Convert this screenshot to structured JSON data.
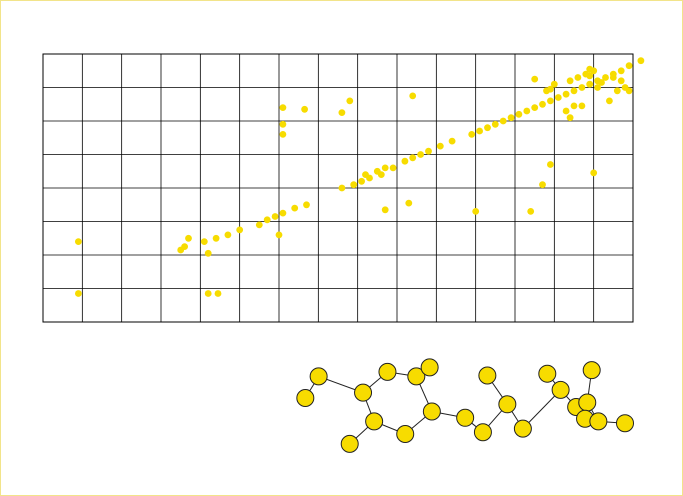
{
  "colors": {
    "frame_border": "#f2e48a",
    "grid": "#000000",
    "point_fill": "#f7dc00",
    "node_fill": "#f7dc00",
    "node_stroke": "#222222",
    "edge": "#222222"
  },
  "chart_data": {
    "type": "scatter",
    "title": "",
    "xlabel": "",
    "ylabel": "",
    "xlim": [
      0,
      15
    ],
    "ylim": [
      0,
      8
    ],
    "grid": true,
    "x_divisions": 15,
    "y_divisions": 8,
    "axis_tick_labels_shown": false,
    "legend": "none",
    "series": [
      {
        "marker": "circle",
        "points": [
          [
            0.9,
            2.4
          ],
          [
            0.9,
            0.85
          ],
          [
            3.5,
            2.15
          ],
          [
            3.6,
            2.25
          ],
          [
            3.7,
            2.5
          ],
          [
            4.1,
            2.4
          ],
          [
            4.2,
            2.05
          ],
          [
            4.4,
            2.5
          ],
          [
            4.7,
            2.6
          ],
          [
            5.0,
            2.75
          ],
          [
            5.5,
            2.9
          ],
          [
            5.7,
            3.05
          ],
          [
            5.9,
            3.15
          ],
          [
            6.1,
            3.25
          ],
          [
            6.4,
            3.4
          ],
          [
            6.7,
            3.5
          ],
          [
            6.0,
            2.6
          ],
          [
            4.2,
            0.85
          ],
          [
            4.45,
            0.85
          ],
          [
            6.1,
            6.4
          ],
          [
            6.65,
            6.35
          ],
          [
            6.1,
            5.6
          ],
          [
            6.1,
            5.9
          ],
          [
            7.6,
            4.0
          ],
          [
            7.9,
            4.1
          ],
          [
            8.1,
            4.2
          ],
          [
            8.2,
            4.4
          ],
          [
            8.3,
            4.3
          ],
          [
            8.5,
            4.5
          ],
          [
            8.6,
            4.4
          ],
          [
            8.7,
            4.6
          ],
          [
            8.9,
            4.6
          ],
          [
            9.2,
            4.8
          ],
          [
            9.4,
            4.9
          ],
          [
            9.6,
            5.0
          ],
          [
            9.8,
            5.1
          ],
          [
            10.1,
            5.25
          ],
          [
            10.4,
            5.4
          ],
          [
            10.9,
            5.6
          ],
          [
            11.1,
            5.7
          ],
          [
            11.3,
            5.8
          ],
          [
            11.5,
            5.9
          ],
          [
            11.7,
            6.0
          ],
          [
            11.9,
            6.1
          ],
          [
            12.1,
            6.2
          ],
          [
            12.3,
            6.3
          ],
          [
            12.5,
            6.4
          ],
          [
            12.7,
            6.5
          ],
          [
            12.9,
            6.6
          ],
          [
            13.1,
            6.7
          ],
          [
            13.3,
            6.8
          ],
          [
            13.5,
            6.9
          ],
          [
            13.7,
            7.0
          ],
          [
            13.9,
            7.1
          ],
          [
            14.1,
            7.2
          ],
          [
            14.3,
            7.3
          ],
          [
            14.5,
            7.4
          ],
          [
            14.7,
            7.5
          ],
          [
            14.9,
            7.65
          ],
          [
            15.2,
            7.8
          ],
          [
            7.8,
            6.6
          ],
          [
            7.6,
            6.25
          ],
          [
            9.4,
            6.75
          ],
          [
            8.7,
            3.35
          ],
          [
            9.3,
            3.55
          ],
          [
            11.0,
            3.3
          ],
          [
            12.4,
            3.3
          ],
          [
            12.9,
            4.7
          ],
          [
            12.7,
            4.1
          ],
          [
            14.0,
            4.45
          ],
          [
            12.5,
            7.25
          ],
          [
            12.9,
            6.95
          ],
          [
            13.0,
            7.1
          ],
          [
            13.4,
            7.2
          ],
          [
            13.6,
            7.3
          ],
          [
            13.8,
            7.4
          ],
          [
            14.0,
            7.5
          ],
          [
            13.5,
            6.45
          ],
          [
            13.4,
            6.1
          ],
          [
            13.9,
            7.55
          ],
          [
            14.2,
            7.15
          ],
          [
            14.4,
            6.6
          ],
          [
            14.6,
            6.9
          ],
          [
            14.8,
            7.0
          ],
          [
            14.9,
            6.9
          ],
          [
            13.7,
            6.45
          ],
          [
            13.9,
            7.35
          ],
          [
            14.1,
            7.0
          ],
          [
            14.5,
            7.3
          ],
          [
            14.7,
            7.2
          ],
          [
            13.3,
            6.3
          ],
          [
            12.8,
            6.9
          ]
        ]
      }
    ],
    "network": {
      "nodes": [
        {
          "id": 1,
          "x": 0.06,
          "y": 0.4
        },
        {
          "id": 2,
          "x": 0.12,
          "y": 0.16
        },
        {
          "id": 3,
          "x": 0.32,
          "y": 0.34
        },
        {
          "id": 4,
          "x": 0.43,
          "y": 0.11
        },
        {
          "id": 5,
          "x": 0.56,
          "y": 0.16
        },
        {
          "id": 6,
          "x": 0.62,
          "y": 0.06
        },
        {
          "id": 7,
          "x": 0.37,
          "y": 0.66
        },
        {
          "id": 8,
          "x": 0.51,
          "y": 0.8
        },
        {
          "id": 9,
          "x": 0.63,
          "y": 0.55
        },
        {
          "id": 10,
          "x": 0.26,
          "y": 0.91
        },
        {
          "id": 11,
          "x": 0.78,
          "y": 0.62
        },
        {
          "id": 12,
          "x": 0.86,
          "y": 0.78
        },
        {
          "id": 13,
          "x": 0.88,
          "y": 0.15
        },
        {
          "id": 14,
          "x": 0.97,
          "y": 0.47
        },
        {
          "id": 15,
          "x": 1.04,
          "y": 0.74
        },
        {
          "id": 16,
          "x": 1.15,
          "y": 0.13
        },
        {
          "id": 17,
          "x": 1.21,
          "y": 0.31
        },
        {
          "id": 18,
          "x": 1.28,
          "y": 0.5
        },
        {
          "id": 19,
          "x": 1.33,
          "y": 0.45
        },
        {
          "id": 20,
          "x": 1.32,
          "y": 0.63
        },
        {
          "id": 21,
          "x": 1.35,
          "y": 0.09
        },
        {
          "id": 22,
          "x": 1.38,
          "y": 0.66
        },
        {
          "id": 23,
          "x": 1.5,
          "y": 0.68
        }
      ],
      "edges": [
        [
          1,
          2
        ],
        [
          2,
          3
        ],
        [
          3,
          4
        ],
        [
          4,
          5
        ],
        [
          5,
          6
        ],
        [
          3,
          7
        ],
        [
          7,
          8
        ],
        [
          8,
          9
        ],
        [
          9,
          5
        ],
        [
          7,
          10
        ],
        [
          9,
          11
        ],
        [
          11,
          12
        ],
        [
          12,
          14
        ],
        [
          14,
          13
        ],
        [
          14,
          15
        ],
        [
          15,
          17
        ],
        [
          17,
          16
        ],
        [
          17,
          18
        ],
        [
          18,
          19
        ],
        [
          19,
          20
        ],
        [
          19,
          21
        ],
        [
          19,
          22
        ],
        [
          20,
          22
        ],
        [
          22,
          23
        ]
      ]
    }
  }
}
